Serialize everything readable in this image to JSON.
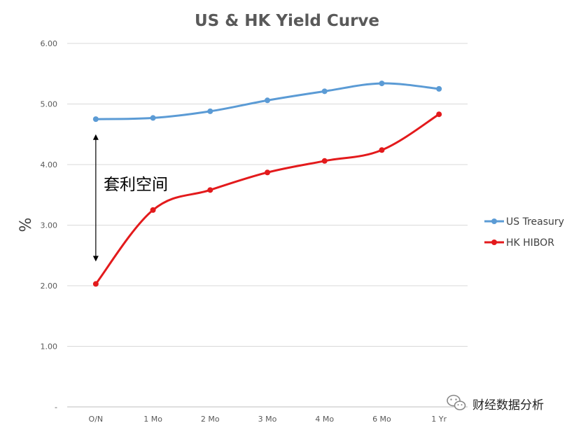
{
  "chart_data": {
    "type": "line",
    "title": "US & HK Yield Curve",
    "ylabel": "%",
    "xlabel": "",
    "ylim": [
      0,
      6
    ],
    "yticks": [
      {
        "value": 0,
        "label": "-"
      },
      {
        "value": 1,
        "label": "1.00"
      },
      {
        "value": 2,
        "label": "2.00"
      },
      {
        "value": 3,
        "label": "3.00"
      },
      {
        "value": 4,
        "label": "4.00"
      },
      {
        "value": 5,
        "label": "5.00"
      },
      {
        "value": 6,
        "label": "6.00"
      }
    ],
    "categories": [
      "O/N",
      "1 Mo",
      "2 Mo",
      "3 Mo",
      "4 Mo",
      "6 Mo",
      "1 Yr"
    ],
    "grid": true,
    "legend_position": "right",
    "series": [
      {
        "name": "US Treasury",
        "color": "#5b9bd5",
        "values": [
          4.75,
          4.77,
          4.88,
          5.06,
          5.21,
          5.34,
          5.25
        ]
      },
      {
        "name": "HK HIBOR",
        "color": "#e31a1c",
        "values": [
          2.03,
          3.25,
          3.58,
          3.87,
          4.06,
          4.24,
          4.83
        ]
      }
    ],
    "annotation": {
      "text": "套利空间",
      "arrow_category": "O/N",
      "arrow_from": 2.4,
      "arrow_to": 4.5
    }
  },
  "watermark": {
    "text": "财经数据分析",
    "icon": "wechat-icon"
  }
}
